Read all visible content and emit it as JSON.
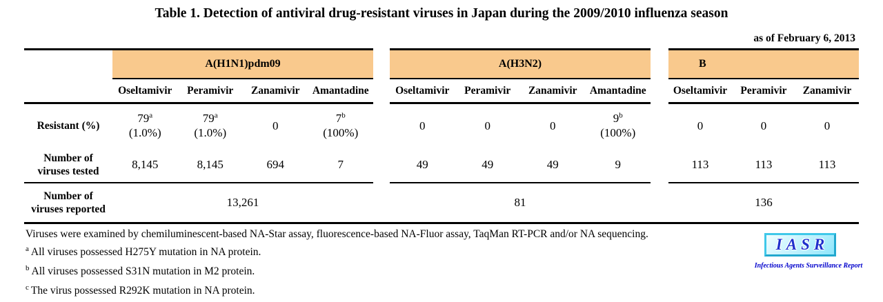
{
  "title": "Table 1. Detection of antiviral drug-resistant viruses in Japan during the 2009/2010 influenza season",
  "as_of": "as of February 6, 2013",
  "row_labels": {
    "resistant": "Resistant (%)",
    "tested_line1": "Number of",
    "tested_line2": "viruses tested",
    "reported_line1": "Number of",
    "reported_line2": "viruses reported"
  },
  "groups": [
    {
      "name": "A(H1N1)pdm09",
      "drugs": [
        "Oseltamivir",
        "Peramivir",
        "Zanamivir",
        "Amantadine"
      ],
      "resistant": [
        {
          "value": "79",
          "note": "a",
          "percent": "(1.0%)"
        },
        {
          "value": "79",
          "note": "a",
          "percent": "(1.0%)"
        },
        {
          "value": "0",
          "note": "",
          "percent": ""
        },
        {
          "value": "7",
          "note": "b",
          "percent": "(100%)"
        }
      ],
      "tested": [
        "8,145",
        "8,145",
        "694",
        "7"
      ],
      "reported": "13,261"
    },
    {
      "name": "A(H3N2)",
      "drugs": [
        "Oseltamivir",
        "Peramivir",
        "Zanamivir",
        "Amantadine"
      ],
      "resistant": [
        {
          "value": "0",
          "note": "",
          "percent": ""
        },
        {
          "value": "0",
          "note": "",
          "percent": ""
        },
        {
          "value": "0",
          "note": "",
          "percent": ""
        },
        {
          "value": "9",
          "note": "b",
          "percent": "(100%)"
        }
      ],
      "tested": [
        "49",
        "49",
        "49",
        "9"
      ],
      "reported": "81"
    },
    {
      "name": "B",
      "drugs": [
        "Oseltamivir",
        "Peramivir",
        "Zanamivir"
      ],
      "resistant": [
        {
          "value": "0",
          "note": "",
          "percent": ""
        },
        {
          "value": "0",
          "note": "",
          "percent": ""
        },
        {
          "value": "0",
          "note": "",
          "percent": ""
        }
      ],
      "tested": [
        "113",
        "113",
        "113"
      ],
      "reported": "136"
    }
  ],
  "footnotes": {
    "method": "Viruses were examined by chemiluminescent-based NA-Star assay, fluorescence-based NA-Fluor assay, TaqMan RT-PCR and/or NA sequencing.",
    "notes": [
      {
        "mark": "a",
        "text": "All viruses possessed H275Y mutation in NA protein."
      },
      {
        "mark": "b",
        "text": "All viruses possessed S31N mutation in M2 protein."
      },
      {
        "mark": "c",
        "text": "The virus possessed R292K mutation in NA protein."
      }
    ]
  },
  "logo": {
    "acronym": "IASR",
    "subtitle": "Infectious Agents Surveillance Report"
  },
  "colors": {
    "band": "#F9C98D",
    "logo_border": "#3FC8E9",
    "logo_text": "#2030CC"
  }
}
